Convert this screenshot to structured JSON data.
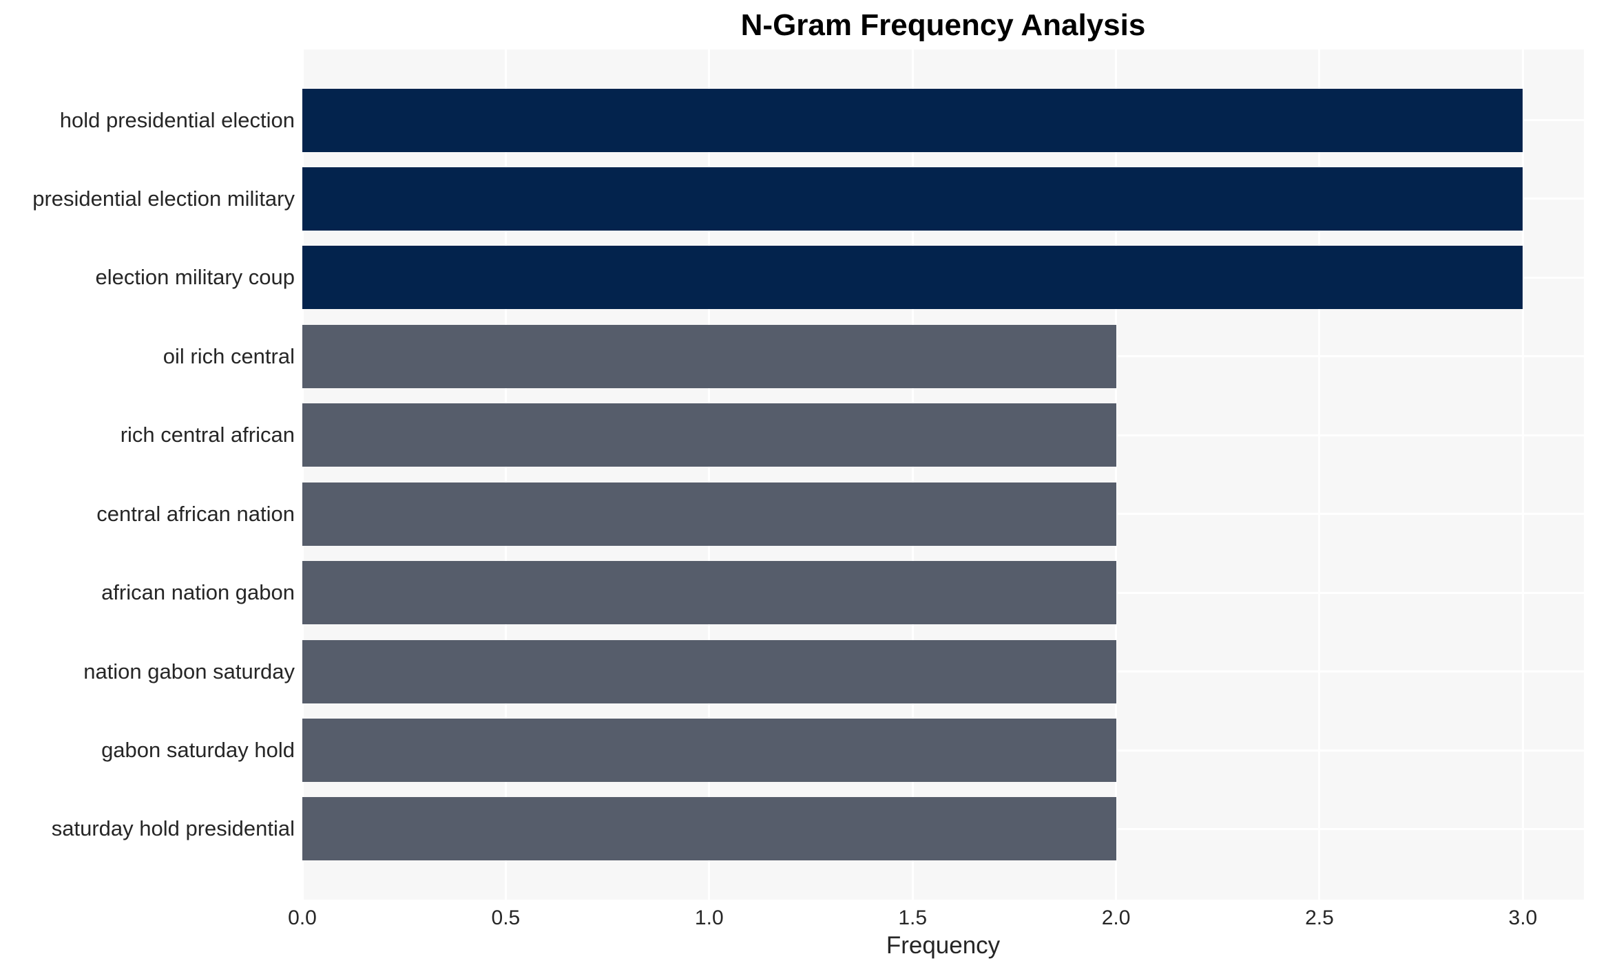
{
  "chart_data": {
    "type": "bar",
    "orientation": "horizontal",
    "title": "N-Gram Frequency Analysis",
    "xlabel": "Frequency",
    "ylabel": "",
    "categories": [
      "hold presidential election",
      "presidential election military",
      "election military coup",
      "oil rich central",
      "rich central african",
      "central african nation",
      "african nation gabon",
      "nation gabon saturday",
      "gabon saturday hold",
      "saturday hold presidential"
    ],
    "values": [
      3,
      3,
      3,
      2,
      2,
      2,
      2,
      2,
      2,
      2
    ],
    "bar_colors": [
      "#03234d",
      "#03234d",
      "#03234d",
      "#565d6b",
      "#565d6b",
      "#565d6b",
      "#565d6b",
      "#565d6b",
      "#565d6b",
      "#565d6b"
    ],
    "xticks": [
      {
        "label": "0.0",
        "value": 0.0
      },
      {
        "label": "0.5",
        "value": 0.5
      },
      {
        "label": "1.0",
        "value": 1.0
      },
      {
        "label": "1.5",
        "value": 1.5
      },
      {
        "label": "2.0",
        "value": 2.0
      },
      {
        "label": "2.5",
        "value": 2.5
      },
      {
        "label": "3.0",
        "value": 3.0
      }
    ],
    "xlim": [
      0,
      3.15
    ],
    "grid": true,
    "legend_position": "none",
    "colors": {
      "plot_background": "#f7f7f7",
      "grid_color": "#ffffff",
      "bar_high": "#03234d",
      "bar_low": "#565d6b",
      "tick_text": "#262626",
      "title_text": "#000000"
    }
  }
}
